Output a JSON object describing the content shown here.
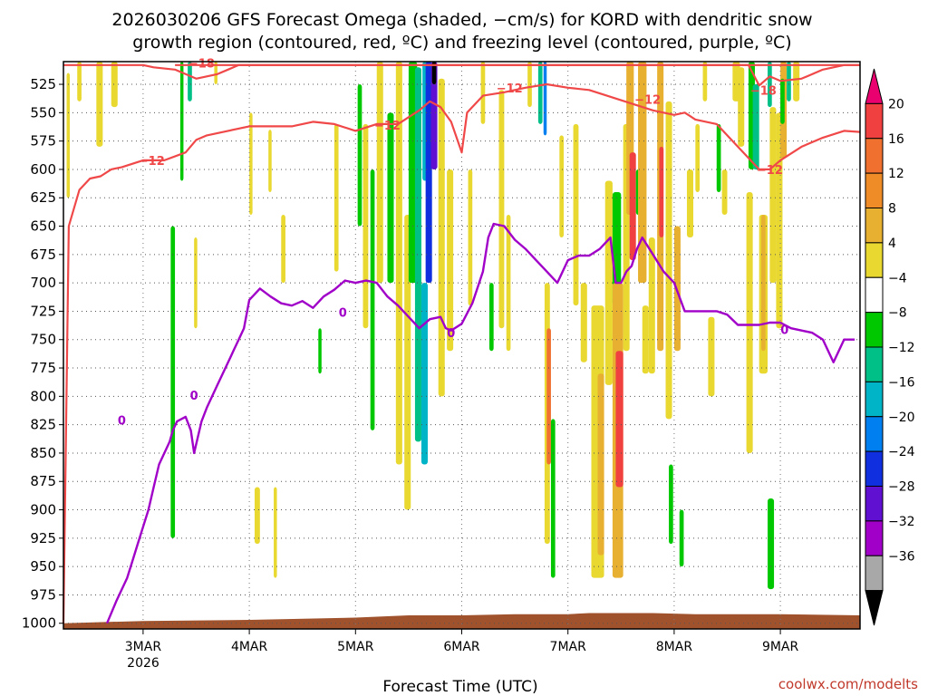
{
  "chart_data": {
    "type": "heatmap",
    "title": [
      "2026030206 GFS Forecast Omega (shaded, −cm/s) for KORD with dendritic snow",
      "growth region (contoured, red, ºC) and freezing level (contoured, purple, ºC)"
    ],
    "xlabel": "Forecast Time (UTC)",
    "credit": "coolwx.com/modelts",
    "y_ticks": [
      "525",
      "550",
      "575",
      "600",
      "625",
      "650",
      "675",
      "700",
      "725",
      "750",
      "775",
      "800",
      "825",
      "850",
      "875",
      "900",
      "925",
      "950",
      "975",
      "1000"
    ],
    "y_values": [
      525,
      550,
      575,
      600,
      625,
      650,
      675,
      700,
      725,
      750,
      775,
      800,
      825,
      850,
      875,
      900,
      925,
      950,
      975,
      1000
    ],
    "ylim_hPa": [
      505,
      1005
    ],
    "x_ticks": [
      "3MAR",
      "4MAR",
      "5MAR",
      "6MAR",
      "7MAR",
      "8MAR",
      "9MAR"
    ],
    "x_ticks_day": [
      3,
      4,
      5,
      6,
      7,
      8,
      9
    ],
    "x_year_label": "2026",
    "xlim_days": [
      2.25,
      9.75
    ],
    "colorbar": {
      "labels": [
        "20",
        "16",
        "12",
        "8",
        "4",
        "−4",
        "−8",
        "−12",
        "−16",
        "−20",
        "−24",
        "−28",
        "−32",
        "−36"
      ],
      "colors": [
        "#ea006f",
        "#f04040",
        "#f07030",
        "#f08c28",
        "#e8b030",
        "#e8d830",
        "#ffffff",
        "#00c800",
        "#00c088",
        "#00b4c8",
        "#0080f0",
        "#1030e0",
        "#6010d0",
        "#a000c8",
        "#a8a8a8",
        "#000000"
      ]
    },
    "contours": {
      "freezing_level_0C": {
        "label": "0",
        "color": "#a000c8",
        "x": [
          2.66,
          2.75,
          2.85,
          2.9,
          2.95,
          3.0,
          3.05,
          3.1,
          3.15,
          3.25,
          3.28,
          3.32,
          3.4,
          3.45,
          3.48,
          3.55,
          3.6,
          3.7,
          3.75,
          3.8,
          3.85,
          3.9,
          3.95,
          4.0,
          4.05,
          4.1,
          4.2,
          4.3,
          4.4,
          4.5,
          4.6,
          4.7,
          4.8,
          4.9,
          5.0,
          5.1,
          5.2,
          5.3,
          5.4,
          5.5,
          5.6,
          5.7,
          5.8,
          5.85,
          5.9,
          6.0,
          6.1,
          6.2,
          6.25,
          6.3,
          6.4,
          6.5,
          6.6,
          6.7,
          6.8,
          6.9,
          7.0,
          7.1,
          7.2,
          7.3,
          7.4,
          7.45,
          7.5,
          7.55,
          7.6,
          7.65,
          7.7,
          7.8,
          7.9,
          8.0,
          8.1,
          8.2,
          8.3,
          8.4,
          8.5,
          8.6,
          8.7,
          8.8,
          8.9,
          9.0,
          9.1,
          9.2,
          9.3,
          9.4,
          9.5,
          9.6,
          9.7
        ],
        "y": [
          1000,
          980,
          960,
          945,
          930,
          915,
          900,
          880,
          860,
          840,
          830,
          822,
          818,
          830,
          850,
          822,
          810,
          790,
          780,
          770,
          760,
          750,
          740,
          715,
          710,
          705,
          712,
          718,
          720,
          716,
          722,
          712,
          706,
          698,
          700,
          698,
          700,
          712,
          720,
          730,
          740,
          732,
          730,
          740,
          742,
          736,
          718,
          690,
          660,
          648,
          650,
          662,
          670,
          680,
          690,
          700,
          680,
          676,
          676,
          670,
          660,
          700,
          700,
          690,
          685,
          670,
          660,
          675,
          690,
          700,
          725,
          725,
          725,
          725,
          728,
          737,
          737,
          737,
          735,
          735,
          740,
          742,
          744,
          750,
          770,
          750,
          750
        ]
      },
      "dgz_minus12C_lower": {
        "label": "−12",
        "color": "#f04848",
        "x": [
          2.25,
          2.3,
          2.4,
          2.5,
          2.6,
          2.7,
          2.8,
          3.0,
          3.2,
          3.4,
          3.5,
          3.6,
          3.8,
          4.0,
          4.2,
          4.4,
          4.6,
          4.8,
          5.0,
          5.2,
          5.4,
          5.5,
          5.6,
          5.7,
          5.8,
          5.9,
          6.0,
          6.05,
          6.2,
          6.4,
          6.6,
          6.8,
          7.0,
          7.2,
          7.4,
          7.6,
          7.8,
          8.0,
          8.1,
          8.2,
          8.4,
          8.6,
          8.8,
          8.9,
          9.0,
          9.2,
          9.4,
          9.6,
          9.75
        ],
        "y": [
          1000,
          650,
          618,
          608,
          606,
          600,
          598,
          592,
          592,
          585,
          574,
          570,
          566,
          562,
          562,
          562,
          558,
          560,
          566,
          560,
          560,
          554,
          548,
          540,
          545,
          558,
          585,
          550,
          535,
          532,
          528,
          525,
          528,
          530,
          536,
          542,
          548,
          552,
          550,
          556,
          560,
          580,
          600,
          600,
          592,
          580,
          572,
          566,
          567
        ]
      },
      "dgz_minus12C_upper": {
        "label": "−12",
        "color": "#f04848",
        "x": [
          2.25,
          2.5,
          2.75,
          3.0,
          3.1,
          3.3,
          3.5,
          3.7,
          3.9,
          4.1,
          4.4,
          4.7,
          5.0,
          5.3,
          5.6,
          5.75,
          5.9,
          6.1,
          6.3,
          6.5,
          6.7,
          6.9,
          7.1,
          7.3,
          7.5,
          7.7,
          7.9,
          8.05,
          8.2,
          8.4,
          8.6,
          8.75,
          8.9,
          9.1,
          9.3,
          9.5,
          9.75
        ],
        "y": [
          508,
          508,
          508,
          508,
          510,
          512,
          520,
          516,
          508,
          508,
          508,
          508,
          508,
          508,
          508,
          508,
          508,
          508,
          508,
          508,
          508,
          508,
          508,
          508,
          508,
          508,
          508,
          508,
          508,
          508,
          508,
          508,
          508,
          508,
          508,
          508,
          508
        ]
      },
      "minus18C": {
        "label": "−18",
        "color": "#f04848",
        "x": [
          3.3,
          3.5,
          3.7,
          3.9,
          4.1,
          4.3,
          4.5,
          4.7,
          4.9,
          5.1,
          5.25,
          7.3,
          7.5,
          7.7,
          7.9,
          8.1,
          8.3,
          8.5,
          8.7,
          8.8,
          8.9,
          9.0,
          9.2,
          9.4,
          9.6,
          9.75
        ],
        "y": [
          508,
          508,
          508,
          508,
          508,
          508,
          508,
          508,
          508,
          508,
          508,
          508,
          508,
          508,
          508,
          508,
          508,
          508,
          508,
          526,
          518,
          522,
          520,
          512,
          508,
          508
        ]
      }
    },
    "shading_note": "Omega shaded fields: yellow/orange/red rising motion columns, green/teal/blue sinking columns",
    "shading_bands": [
      {
        "x0": 2.28,
        "x1": 2.31,
        "p0": 515,
        "p1": 625,
        "level": 4
      },
      {
        "x0": 2.38,
        "x1": 2.42,
        "p0": 505,
        "p1": 540,
        "level": 4
      },
      {
        "x0": 2.56,
        "x1": 2.62,
        "p0": 505,
        "p1": 580,
        "level": 4
      },
      {
        "x0": 2.7,
        "x1": 2.76,
        "p0": 505,
        "p1": 545,
        "level": 4
      },
      {
        "x0": 3.35,
        "x1": 3.38,
        "p0": 505,
        "p1": 610,
        "level": -8
      },
      {
        "x0": 3.42,
        "x1": 3.46,
        "p0": 505,
        "p1": 540,
        "level": -12
      },
      {
        "x0": 3.26,
        "x1": 3.3,
        "p0": 650,
        "p1": 925,
        "level": -8
      },
      {
        "x0": 3.48,
        "x1": 3.51,
        "p0": 660,
        "p1": 740,
        "level": 4
      },
      {
        "x0": 3.67,
        "x1": 3.7,
        "p0": 505,
        "p1": 525,
        "level": 4
      },
      {
        "x0": 4.0,
        "x1": 4.03,
        "p0": 550,
        "p1": 640,
        "level": 4
      },
      {
        "x0": 4.05,
        "x1": 4.1,
        "p0": 880,
        "p1": 930,
        "level": 4
      },
      {
        "x0": 4.18,
        "x1": 4.21,
        "p0": 565,
        "p1": 620,
        "level": 4
      },
      {
        "x0": 4.23,
        "x1": 4.26,
        "p0": 880,
        "p1": 960,
        "level": 4
      },
      {
        "x0": 4.3,
        "x1": 4.34,
        "p0": 640,
        "p1": 700,
        "level": 4
      },
      {
        "x0": 4.65,
        "x1": 4.68,
        "p0": 740,
        "p1": 780,
        "level": -8
      },
      {
        "x0": 4.8,
        "x1": 4.84,
        "p0": 560,
        "p1": 690,
        "level": 4
      },
      {
        "x0": 5.02,
        "x1": 5.06,
        "p0": 525,
        "p1": 650,
        "level": -8
      },
      {
        "x0": 5.07,
        "x1": 5.12,
        "p0": 560,
        "p1": 740,
        "level": 4
      },
      {
        "x0": 5.14,
        "x1": 5.18,
        "p0": 600,
        "p1": 830,
        "level": -8
      },
      {
        "x0": 5.2,
        "x1": 5.26,
        "p0": 505,
        "p1": 700,
        "level": 4
      },
      {
        "x0": 5.3,
        "x1": 5.36,
        "p0": 550,
        "p1": 700,
        "level": -8
      },
      {
        "x0": 5.38,
        "x1": 5.44,
        "p0": 500,
        "p1": 860,
        "level": 4
      },
      {
        "x0": 5.46,
        "x1": 5.52,
        "p0": 640,
        "p1": 900,
        "level": 4
      },
      {
        "x0": 5.5,
        "x1": 5.58,
        "p0": 505,
        "p1": 700,
        "level": -8
      },
      {
        "x0": 5.56,
        "x1": 5.62,
        "p0": 510,
        "p1": 840,
        "level": -12
      },
      {
        "x0": 5.63,
        "x1": 5.68,
        "p0": 505,
        "p1": 610,
        "level": -16
      },
      {
        "x0": 5.66,
        "x1": 5.72,
        "p0": 505,
        "p1": 700,
        "level": -24
      },
      {
        "x0": 5.71,
        "x1": 5.77,
        "p0": 505,
        "p1": 600,
        "level": -28
      },
      {
        "x0": 5.72,
        "x1": 5.76,
        "p0": 505,
        "p1": 525,
        "level": -36
      },
      {
        "x0": 5.62,
        "x1": 5.68,
        "p0": 700,
        "p1": 860,
        "level": -16
      },
      {
        "x0": 5.78,
        "x1": 5.84,
        "p0": 520,
        "p1": 800,
        "level": 4
      },
      {
        "x0": 5.86,
        "x1": 5.92,
        "p0": 600,
        "p1": 760,
        "level": 4
      },
      {
        "x0": 6.06,
        "x1": 6.1,
        "p0": 600,
        "p1": 720,
        "level": 4
      },
      {
        "x0": 6.18,
        "x1": 6.22,
        "p0": 505,
        "p1": 560,
        "level": 4
      },
      {
        "x0": 6.26,
        "x1": 6.3,
        "p0": 700,
        "p1": 760,
        "level": -8
      },
      {
        "x0": 6.35,
        "x1": 6.4,
        "p0": 530,
        "p1": 740,
        "level": 4
      },
      {
        "x0": 6.42,
        "x1": 6.46,
        "p0": 640,
        "p1": 760,
        "level": 4
      },
      {
        "x0": 6.62,
        "x1": 6.66,
        "p0": 505,
        "p1": 545,
        "level": 4
      },
      {
        "x0": 6.72,
        "x1": 6.76,
        "p0": 505,
        "p1": 560,
        "level": -12
      },
      {
        "x0": 6.77,
        "x1": 6.8,
        "p0": 505,
        "p1": 570,
        "level": -20
      },
      {
        "x0": 6.78,
        "x1": 6.83,
        "p0": 700,
        "p1": 930,
        "level": 4
      },
      {
        "x0": 6.8,
        "x1": 6.84,
        "p0": 740,
        "p1": 860,
        "level": 12
      },
      {
        "x0": 6.84,
        "x1": 6.88,
        "p0": 820,
        "p1": 960,
        "level": -8
      },
      {
        "x0": 6.92,
        "x1": 6.96,
        "p0": 570,
        "p1": 660,
        "level": 4
      },
      {
        "x0": 7.05,
        "x1": 7.1,
        "p0": 560,
        "p1": 720,
        "level": 4
      },
      {
        "x0": 7.12,
        "x1": 7.18,
        "p0": 700,
        "p1": 770,
        "level": 4
      },
      {
        "x0": 7.22,
        "x1": 7.34,
        "p0": 720,
        "p1": 960,
        "level": 4
      },
      {
        "x0": 7.28,
        "x1": 7.34,
        "p0": 780,
        "p1": 940,
        "level": 8
      },
      {
        "x0": 7.35,
        "x1": 7.42,
        "p0": 610,
        "p1": 790,
        "level": 4
      },
      {
        "x0": 7.42,
        "x1": 7.5,
        "p0": 620,
        "p1": 720,
        "level": -8
      },
      {
        "x0": 7.42,
        "x1": 7.52,
        "p0": 700,
        "p1": 960,
        "level": 8
      },
      {
        "x0": 7.45,
        "x1": 7.52,
        "p0": 760,
        "p1": 880,
        "level": 16
      },
      {
        "x0": 7.52,
        "x1": 7.58,
        "p0": 560,
        "p1": 760,
        "level": 4
      },
      {
        "x0": 7.55,
        "x1": 7.62,
        "p0": 505,
        "p1": 640,
        "level": 8
      },
      {
        "x0": 7.58,
        "x1": 7.64,
        "p0": 585,
        "p1": 680,
        "level": 16
      },
      {
        "x0": 7.64,
        "x1": 7.68,
        "p0": 600,
        "p1": 640,
        "level": -8
      },
      {
        "x0": 7.66,
        "x1": 7.74,
        "p0": 505,
        "p1": 700,
        "level": 8
      },
      {
        "x0": 7.7,
        "x1": 7.76,
        "p0": 720,
        "p1": 780,
        "level": 4
      },
      {
        "x0": 7.76,
        "x1": 7.82,
        "p0": 660,
        "p1": 780,
        "level": 4
      },
      {
        "x0": 7.84,
        "x1": 7.9,
        "p0": 505,
        "p1": 760,
        "level": 8
      },
      {
        "x0": 7.86,
        "x1": 7.9,
        "p0": 580,
        "p1": 660,
        "level": 16
      },
      {
        "x0": 7.92,
        "x1": 7.98,
        "p0": 540,
        "p1": 820,
        "level": 4
      },
      {
        "x0": 7.95,
        "x1": 7.99,
        "p0": 860,
        "p1": 930,
        "level": -8
      },
      {
        "x0": 8.0,
        "x1": 8.06,
        "p0": 650,
        "p1": 760,
        "level": 8
      },
      {
        "x0": 8.05,
        "x1": 8.09,
        "p0": 900,
        "p1": 950,
        "level": -8
      },
      {
        "x0": 8.12,
        "x1": 8.18,
        "p0": 600,
        "p1": 660,
        "level": 4
      },
      {
        "x0": 8.2,
        "x1": 8.24,
        "p0": 560,
        "p1": 620,
        "level": 4
      },
      {
        "x0": 8.27,
        "x1": 8.31,
        "p0": 505,
        "p1": 540,
        "level": 4
      },
      {
        "x0": 8.32,
        "x1": 8.38,
        "p0": 730,
        "p1": 800,
        "level": 4
      },
      {
        "x0": 8.4,
        "x1": 8.44,
        "p0": 560,
        "p1": 620,
        "level": -8
      },
      {
        "x0": 8.45,
        "x1": 8.5,
        "p0": 600,
        "p1": 640,
        "level": 4
      },
      {
        "x0": 8.55,
        "x1": 8.62,
        "p0": 505,
        "p1": 540,
        "level": 4
      },
      {
        "x0": 8.6,
        "x1": 8.66,
        "p0": 510,
        "p1": 580,
        "level": 4
      },
      {
        "x0": 8.68,
        "x1": 8.74,
        "p0": 620,
        "p1": 850,
        "level": 4
      },
      {
        "x0": 8.7,
        "x1": 8.76,
        "p0": 505,
        "p1": 600,
        "level": -8
      },
      {
        "x0": 8.74,
        "x1": 8.8,
        "p0": 525,
        "p1": 600,
        "level": -12
      },
      {
        "x0": 8.8,
        "x1": 8.88,
        "p0": 640,
        "p1": 780,
        "level": 4
      },
      {
        "x0": 8.82,
        "x1": 8.86,
        "p0": 640,
        "p1": 760,
        "level": 8
      },
      {
        "x0": 8.88,
        "x1": 8.92,
        "p0": 505,
        "p1": 545,
        "level": -12
      },
      {
        "x0": 8.9,
        "x1": 8.96,
        "p0": 545,
        "p1": 700,
        "level": 4
      },
      {
        "x0": 8.88,
        "x1": 8.94,
        "p0": 890,
        "p1": 970,
        "level": -8
      },
      {
        "x0": 8.96,
        "x1": 9.02,
        "p0": 550,
        "p1": 740,
        "level": 4
      },
      {
        "x0": 9.0,
        "x1": 9.06,
        "p0": 505,
        "p1": 590,
        "level": 8
      },
      {
        "x0": 9.0,
        "x1": 9.04,
        "p0": 520,
        "p1": 560,
        "level": -8
      },
      {
        "x0": 9.06,
        "x1": 9.1,
        "p0": 505,
        "p1": 540,
        "level": -12
      },
      {
        "x0": 9.12,
        "x1": 9.18,
        "p0": 505,
        "p1": 540,
        "level": 4
      }
    ]
  }
}
